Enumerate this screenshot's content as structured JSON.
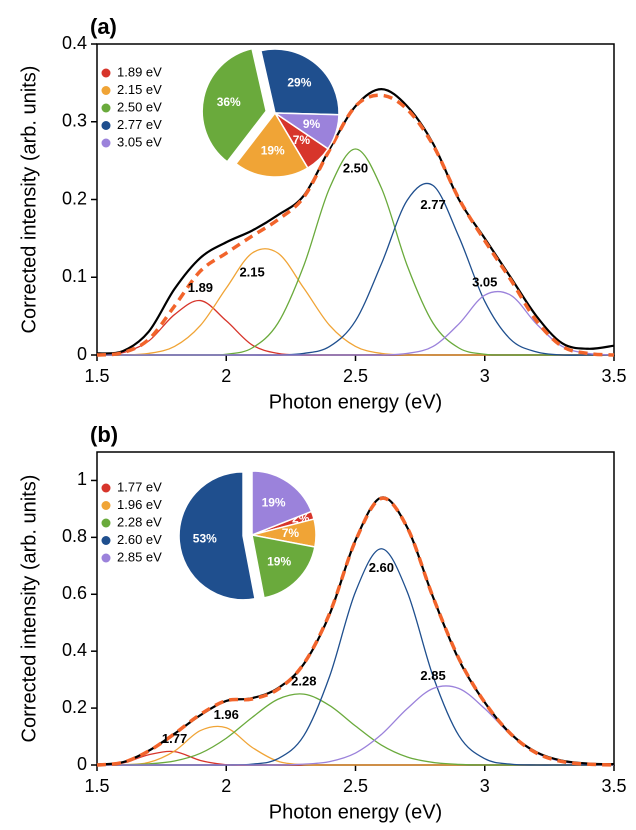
{
  "chart_data": [
    {
      "type": "line",
      "panel_label": "(a)",
      "x_label": "Photon energy (eV)",
      "y_label": "Corrected intensity (arb. units)",
      "x": [
        1.5,
        1.6,
        1.7,
        1.8,
        1.9,
        2.0,
        2.1,
        2.2,
        2.3,
        2.4,
        2.5,
        2.6,
        2.7,
        2.8,
        2.9,
        3.0,
        3.1,
        3.2,
        3.3,
        3.4,
        3.5
      ],
      "xlim": [
        1.5,
        3.5
      ],
      "xticks": [
        1.5,
        2,
        2.5,
        3,
        3.5
      ],
      "ylim": [
        0,
        0.4
      ],
      "yticks": [
        0,
        0.1,
        0.2,
        0.3,
        0.4
      ],
      "series": [
        {
          "name": "1.89 eV",
          "label": "1.89",
          "color": "#d7352b",
          "values": [
            0,
            0.003,
            0.018,
            0.052,
            0.07,
            0.044,
            0.013,
            0.002,
            0,
            0,
            0,
            0,
            0,
            0,
            0,
            0,
            0,
            0,
            0,
            0,
            0
          ]
        },
        {
          "name": "2.15 eV",
          "label": "2.15",
          "color": "#f0a436",
          "values": [
            0,
            0,
            0.002,
            0.011,
            0.038,
            0.086,
            0.131,
            0.131,
            0.086,
            0.038,
            0.011,
            0.002,
            0,
            0,
            0,
            0,
            0,
            0,
            0,
            0,
            0
          ]
        },
        {
          "name": "2.50 eV",
          "label": "2.50",
          "color": "#6aaa3c",
          "values": [
            0,
            0,
            0,
            0,
            0,
            0.001,
            0.009,
            0.041,
            0.115,
            0.215,
            0.265,
            0.215,
            0.115,
            0.041,
            0.009,
            0.001,
            0,
            0,
            0,
            0,
            0
          ]
        },
        {
          "name": "2.77 eV",
          "label": "2.77",
          "color": "#1f4f8e",
          "values": [
            0,
            0,
            0,
            0,
            0,
            0,
            0,
            0,
            0.002,
            0.011,
            0.044,
            0.117,
            0.199,
            0.218,
            0.152,
            0.069,
            0.02,
            0.004,
            0,
            0,
            0
          ]
        },
        {
          "name": "3.05 eV",
          "label": "3.05",
          "color": "#9b82db",
          "values": [
            0,
            0,
            0,
            0,
            0,
            0,
            0,
            0,
            0,
            0,
            0,
            0,
            0.002,
            0.011,
            0.04,
            0.077,
            0.077,
            0.04,
            0.011,
            0.002,
            0
          ]
        },
        {
          "color": "#000000",
          "values": [
            0.002,
            0.005,
            0.03,
            0.085,
            0.125,
            0.145,
            0.16,
            0.18,
            0.205,
            0.265,
            0.32,
            0.342,
            0.32,
            0.272,
            0.2,
            0.15,
            0.1,
            0.05,
            0.015,
            0.008,
            0.012
          ]
        },
        {
          "color": "#f2642b",
          "dashed": true,
          "values": [
            0,
            0.003,
            0.02,
            0.063,
            0.108,
            0.131,
            0.153,
            0.174,
            0.203,
            0.264,
            0.32,
            0.334,
            0.316,
            0.27,
            0.201,
            0.147,
            0.097,
            0.044,
            0.011,
            0.002,
            0
          ]
        }
      ],
      "pie": {
        "values": [
          7,
          19,
          36,
          29,
          9
        ],
        "value_labels": [
          "7%",
          "19%",
          "36%",
          "29%",
          "9%"
        ]
      }
    },
    {
      "type": "line",
      "panel_label": "(b)",
      "x_label": "Photon energy (eV)",
      "y_label": "Corrected intensity (arb. units)",
      "x": [
        1.5,
        1.6,
        1.7,
        1.8,
        1.9,
        2.0,
        2.1,
        2.2,
        2.3,
        2.4,
        2.5,
        2.6,
        2.7,
        2.8,
        2.9,
        3.0,
        3.1,
        3.2,
        3.3,
        3.4,
        3.5
      ],
      "xlim": [
        1.5,
        3.5
      ],
      "xticks": [
        1.5,
        2,
        2.5,
        3,
        3.5
      ],
      "ylim": [
        0,
        1.1
      ],
      "yticks": [
        0,
        0.2,
        0.4,
        0.6,
        0.8,
        1
      ],
      "series": [
        {
          "name": "1.77 eV",
          "label": "1.77",
          "color": "#d7352b",
          "values": [
            0,
            0.007,
            0.036,
            0.047,
            0.016,
            0.001,
            0,
            0,
            0,
            0,
            0,
            0,
            0,
            0,
            0,
            0,
            0,
            0,
            0,
            0,
            0
          ]
        },
        {
          "name": "1.96 eV",
          "label": "1.96",
          "color": "#f0a436",
          "values": [
            0,
            0.001,
            0.009,
            0.049,
            0.121,
            0.131,
            0.062,
            0.013,
            0.001,
            0,
            0,
            0,
            0,
            0,
            0,
            0,
            0,
            0,
            0,
            0,
            0
          ]
        },
        {
          "name": "2.28 eV",
          "label": "2.28",
          "color": "#6aaa3c",
          "values": [
            0,
            0.001,
            0.004,
            0.014,
            0.041,
            0.094,
            0.167,
            0.231,
            0.249,
            0.209,
            0.137,
            0.07,
            0.028,
            0.009,
            0.002,
            0,
            0,
            0,
            0,
            0,
            0
          ]
        },
        {
          "name": "2.60 eV",
          "label": "2.60",
          "color": "#1f4f8e",
          "values": [
            0,
            0,
            0,
            0,
            0,
            0,
            0.003,
            0.022,
            0.103,
            0.312,
            0.609,
            0.76,
            0.609,
            0.312,
            0.103,
            0.022,
            0.003,
            0,
            0,
            0,
            0
          ]
        },
        {
          "name": "2.85 eV",
          "label": "2.85",
          "color": "#9b82db",
          "values": [
            0,
            0,
            0,
            0,
            0,
            0,
            0,
            0,
            0.003,
            0.012,
            0.042,
            0.107,
            0.198,
            0.269,
            0.269,
            0.198,
            0.107,
            0.042,
            0.012,
            0.003,
            0
          ]
        },
        {
          "color": "#000000",
          "values": [
            0.002,
            0.01,
            0.05,
            0.11,
            0.175,
            0.225,
            0.235,
            0.27,
            0.355,
            0.53,
            0.79,
            0.94,
            0.835,
            0.59,
            0.37,
            0.22,
            0.11,
            0.045,
            0.015,
            0.005,
            0.003
          ]
        },
        {
          "color": "#f2642b",
          "dashed": true,
          "values": [
            0,
            0.009,
            0.049,
            0.11,
            0.178,
            0.226,
            0.232,
            0.266,
            0.356,
            0.533,
            0.788,
            0.937,
            0.835,
            0.59,
            0.374,
            0.22,
            0.11,
            0.042,
            0.012,
            0.003,
            0
          ]
        }
      ],
      "pie": {
        "values": [
          2,
          7,
          19,
          53,
          19
        ],
        "value_labels": [
          "2%",
          "7%",
          "19%",
          "53%",
          "19%"
        ]
      }
    }
  ]
}
